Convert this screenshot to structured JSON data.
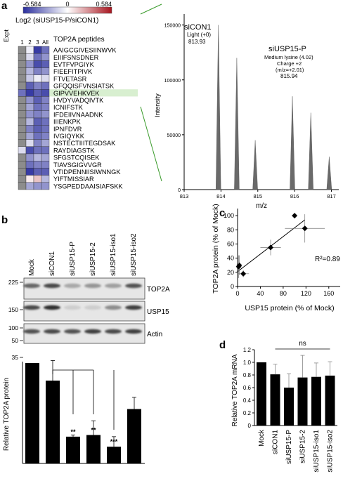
{
  "panel_a": {
    "label": "a",
    "colorbar": {
      "min": "-0.584",
      "mid": "0",
      "max": "0.584",
      "title": "Log2 (siUSP15-P/siCON1)"
    },
    "expt_label": "Expt",
    "col_headers": [
      "1",
      "2",
      "3",
      "All"
    ],
    "peptides_title": "TOP2A peptides",
    "peptides": [
      "AAIGCGIVESIINWVK",
      "EIIIFSNSDNER",
      "EVTFVPGIYK",
      "FIEEFITPIVK",
      "FTVETASR",
      "GFQQISFVNSIATSK",
      "GIPVVEHKVEK",
      "HVDYVADQIVTK",
      "ICNIFSTK",
      "IFDEIIVNAADNK",
      "IIIENKPK",
      "IPNFDVR",
      "IVGIQYKK",
      "NSTECTIIITEGDSAK",
      "RAYDIAGSTK",
      "SFGSTCQISEK",
      "TIAVSGIGVVGR",
      "VTIDPENNIISIWNNGK",
      "YIFTMISSIAR",
      "YSGPEDDAAISIAFSKK"
    ],
    "highlight_index": 6,
    "heatmap_values": [
      [
        null,
        -0.05,
        -0.55,
        -0.4
      ],
      [
        null,
        -0.1,
        -0.4,
        -0.3
      ],
      [
        null,
        -0.3,
        -0.5,
        -0.45
      ],
      [
        null,
        -0.2,
        -0.35,
        -0.3
      ],
      [
        null,
        -0.15,
        -0.05,
        -0.1
      ],
      [
        null,
        -0.45,
        -0.35,
        -0.4
      ],
      [
        -0.4,
        -0.55,
        -0.45,
        -0.5
      ],
      [
        null,
        -0.3,
        -0.45,
        -0.35
      ],
      [
        null,
        -0.25,
        -0.4,
        -0.35
      ],
      [
        null,
        -0.3,
        -0.35,
        -0.3
      ],
      [
        null,
        -0.2,
        -0.45,
        -0.4
      ],
      [
        null,
        -0.35,
        -0.45,
        -0.4
      ],
      [
        null,
        -0.25,
        -0.4,
        -0.35
      ],
      [
        null,
        -0.1,
        -0.35,
        -0.25
      ],
      [
        -0.1,
        -0.5,
        -0.4,
        -0.4
      ],
      [
        null,
        -0.3,
        -0.2,
        -0.25
      ],
      [
        null,
        -0.4,
        -0.35,
        -0.35
      ],
      [
        null,
        -0.55,
        -0.45,
        -0.45
      ],
      [
        null,
        0.05,
        0.15,
        -0.2
      ],
      [
        null,
        -0.25,
        -0.3,
        -0.3
      ]
    ]
  },
  "panel_a_spectrum": {
    "type": "bar",
    "ylabel": "Intensity",
    "xlabel": "m/z",
    "yticks": [
      "0",
      "50000",
      "100000",
      "150000"
    ],
    "xticks": [
      "813",
      "814",
      "815",
      "816",
      "817"
    ],
    "xlim": [
      813,
      817.2
    ],
    "ylim": [
      0,
      160000
    ],
    "peaks_x": [
      813.93,
      814.43,
      814.93,
      815.94,
      816.44,
      816.94
    ],
    "peaks_y": [
      150000,
      120000,
      45000,
      85000,
      70000,
      30000
    ],
    "siCON1_label": "siCON1",
    "siCON1_sub": "Light (+0)",
    "siCON1_mz": "813.93",
    "siUSP_label": "siUSP15-P",
    "siUSP_line1": "Medium lysine (4.02)",
    "siUSP_line2": "Charge +2",
    "siUSP_line3": "(m/z=+2.01)",
    "siUSP_mz": "815.94"
  },
  "panel_b": {
    "label": "b",
    "lanes": [
      "Mock",
      "siCON1",
      "siUSP15-P",
      "siUSP15-2",
      "siUSP15-iso1",
      "siUSP15-iso2"
    ],
    "mw_markers": [
      "225",
      "150",
      "100",
      "50",
      "35"
    ],
    "blot_labels": [
      "TOP2A",
      "USP15",
      "Actin"
    ],
    "band_intensity": {
      "TOP2A": [
        0.65,
        0.8,
        0.3,
        0.4,
        0.35,
        0.75
      ],
      "USP15": [
        0.8,
        0.95,
        0.1,
        0.1,
        0.45,
        0.85
      ],
      "Actin": [
        0.75,
        0.8,
        0.75,
        0.85,
        0.8,
        0.85
      ]
    }
  },
  "panel_b_chart": {
    "type": "bar",
    "ylabel": "Relative TOP2A protein",
    "ylim": [
      0,
      1.2
    ],
    "values": [
      1.2,
      0.99,
      0.32,
      0.34,
      0.2,
      0.65
    ],
    "errors": [
      0.0,
      0.24,
      0.02,
      0.17,
      0.12,
      0.14
    ],
    "significance": [
      "",
      "",
      "**",
      "**",
      "***",
      ""
    ]
  },
  "panel_c": {
    "label": "c",
    "type": "scatter",
    "ylabel": "TOP2A protein (% of Mock)",
    "xlabel": "USP15 protein (% of Mock)",
    "xticks": [
      "0",
      "40",
      "80",
      "120",
      "160"
    ],
    "yticks": [
      "0",
      "20",
      "40",
      "60",
      "80",
      "100"
    ],
    "xlim": [
      0,
      180
    ],
    "ylim": [
      0,
      110
    ],
    "points_x": [
      3,
      10,
      2,
      58,
      118,
      100
    ],
    "points_y": [
      30,
      18,
      28,
      55,
      82,
      100
    ],
    "xerr": [
      3,
      10,
      3,
      18,
      35,
      0
    ],
    "yerr": [
      14,
      5,
      16,
      11,
      20,
      0
    ],
    "fit_x": [
      0,
      118
    ],
    "fit_y": [
      21,
      94
    ],
    "r2": "R²=0.89"
  },
  "panel_d": {
    "label": "d",
    "type": "bar",
    "categories": [
      "Mock",
      "siCON1",
      "siUSP15-P",
      "siUSP15-2",
      "siUSP15-iso1",
      "siUSP15-iso2"
    ],
    "values": [
      1.0,
      0.81,
      0.6,
      0.76,
      0.77,
      0.79
    ],
    "errors": [
      0.0,
      0.16,
      0.22,
      0.35,
      0.22,
      0.22
    ],
    "ylabel": "Relative TOP2A mRNA",
    "yticks": [
      "0",
      "0.2",
      "0.4",
      "0.6",
      "0.8",
      "1.0",
      "1.2"
    ],
    "ylim": [
      0,
      1.2
    ],
    "ns": "ns"
  }
}
